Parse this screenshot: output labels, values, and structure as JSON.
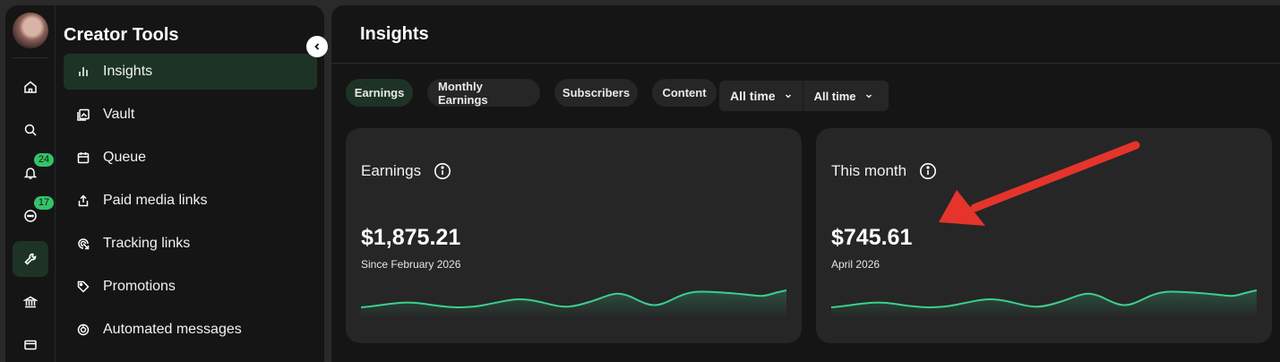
{
  "sidebar": {
    "title": "Creator Tools",
    "rail": {
      "items": [
        {
          "icon": "home-icon"
        },
        {
          "icon": "search-icon"
        },
        {
          "icon": "bell-icon",
          "badge": "24"
        },
        {
          "icon": "chat-icon",
          "badge": "17"
        },
        {
          "icon": "wrench-icon",
          "active": true
        },
        {
          "icon": "bank-icon"
        },
        {
          "icon": "card-icon"
        }
      ]
    },
    "menu": [
      {
        "label": "Insights",
        "icon": "bar-chart-icon",
        "active": true
      },
      {
        "label": "Vault",
        "icon": "vault-icon"
      },
      {
        "label": "Queue",
        "icon": "calendar-icon"
      },
      {
        "label": "Paid media links",
        "icon": "share-icon"
      },
      {
        "label": "Tracking links",
        "icon": "tracking-icon"
      },
      {
        "label": "Promotions",
        "icon": "tag-icon"
      },
      {
        "label": "Automated messages",
        "icon": "automation-icon"
      }
    ]
  },
  "main": {
    "title": "Insights",
    "tabs": [
      {
        "label": "Earnings",
        "active": true
      },
      {
        "label": "Monthly Earnings"
      },
      {
        "label": "Subscribers"
      },
      {
        "label": "Content"
      }
    ],
    "filters": {
      "range_primary": "All time",
      "range_secondary": "All time"
    },
    "cards": [
      {
        "title": "Earnings",
        "value": "$1,875.21",
        "subtitle": "Since February 2026"
      },
      {
        "title": "This month",
        "value": "$745.61",
        "subtitle": "April 2026"
      }
    ]
  },
  "colors": {
    "accent": "#3ccf8e",
    "active_bg": "#1d3326",
    "annotation_arrow": "#e5342b"
  }
}
